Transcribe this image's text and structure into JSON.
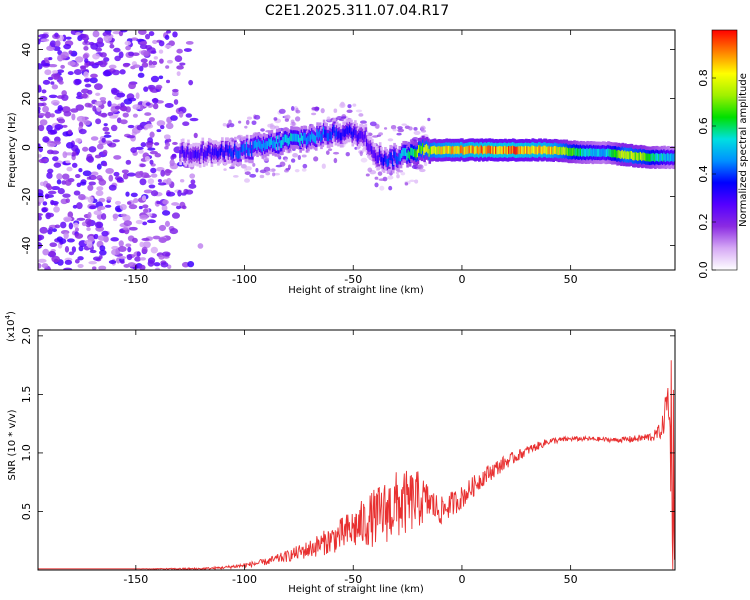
{
  "title": "C2E1.2025.311.07.04.R17",
  "chart_data": [
    {
      "type": "heatmap",
      "xlabel": "Height of straight line (km)",
      "ylabel": "Frequency (Hz)",
      "xlim": [
        -195,
        98
      ],
      "ylim": [
        -50,
        48
      ],
      "xticks": [
        -150,
        -100,
        -50,
        0,
        50
      ],
      "yticks": [
        -40,
        -20,
        0,
        20,
        40
      ],
      "colorbar": {
        "label": "Normalized spectral amplitude",
        "range": [
          0.0,
          1.0
        ],
        "ticks": [
          0.0,
          0.2,
          0.4,
          0.6,
          0.8
        ],
        "colormap": [
          "#ffffff",
          "#d6a9f5",
          "#8b2be2",
          "#5500ff",
          "#0000ff",
          "#0090ff",
          "#00e0e0",
          "#00e000",
          "#a0f000",
          "#ffff00",
          "#ff8000",
          "#ff0000"
        ]
      },
      "ridge": {
        "x": [
          -125,
          -110,
          -100,
          -90,
          -80,
          -70,
          -60,
          -50,
          -45,
          -40,
          -35,
          -30,
          -25,
          -20,
          -10,
          0,
          10,
          25,
          40,
          55,
          65,
          75,
          85,
          95
        ],
        "freq": [
          -2,
          -2,
          -1,
          1,
          3,
          4,
          6,
          6,
          4,
          -3,
          -5,
          -4,
          -2,
          -1,
          -1,
          -1,
          -1,
          -1,
          -1,
          -2,
          -2,
          -3,
          -4,
          -4
        ],
        "amplitude": [
          0.3,
          0.35,
          0.45,
          0.5,
          0.55,
          0.5,
          0.4,
          0.35,
          0.3,
          0.3,
          0.4,
          0.45,
          0.6,
          0.75,
          0.85,
          0.9,
          0.95,
          0.95,
          0.9,
          0.6,
          0.5,
          0.8,
          0.7,
          0.5
        ]
      },
      "noise_region_x": [
        -195,
        -120
      ]
    },
    {
      "type": "line",
      "xlabel": "Height of straight line (km)",
      "ylabel": "SNR (10 * v/v)",
      "yscale_label": "(x10",
      "yscale_exp": "4",
      "yscale_close": ")",
      "xlim": [
        -195,
        98
      ],
      "ylim": [
        0,
        2.05
      ],
      "xticks": [
        -150,
        -100,
        -50,
        0,
        50
      ],
      "yticks": [
        0.5,
        1.0,
        1.5,
        2.0
      ],
      "color": "#e83030",
      "series": [
        {
          "x": [
            -195,
            -150,
            -120,
            -110,
            -100,
            -90,
            -80,
            -70,
            -60,
            -50,
            -40,
            -30,
            -20,
            -15,
            -10,
            0,
            10,
            20,
            30,
            40,
            50,
            60,
            70,
            80,
            88,
            92,
            95,
            97
          ],
          "values": [
            0.01,
            0.01,
            0.01,
            0.02,
            0.04,
            0.07,
            0.12,
            0.18,
            0.26,
            0.35,
            0.45,
            0.55,
            0.6,
            0.58,
            0.5,
            0.62,
            0.8,
            0.92,
            1.02,
            1.1,
            1.12,
            1.12,
            1.11,
            1.12,
            1.14,
            1.2,
            1.5,
            0.3
          ],
          "noise": [
            0.0,
            0.0,
            0.01,
            0.01,
            0.02,
            0.03,
            0.05,
            0.08,
            0.12,
            0.18,
            0.25,
            0.3,
            0.25,
            0.15,
            0.12,
            0.1,
            0.08,
            0.06,
            0.04,
            0.03,
            0.02,
            0.02,
            0.02,
            0.03,
            0.04,
            0.08,
            0.25,
            0.4
          ]
        }
      ]
    }
  ]
}
